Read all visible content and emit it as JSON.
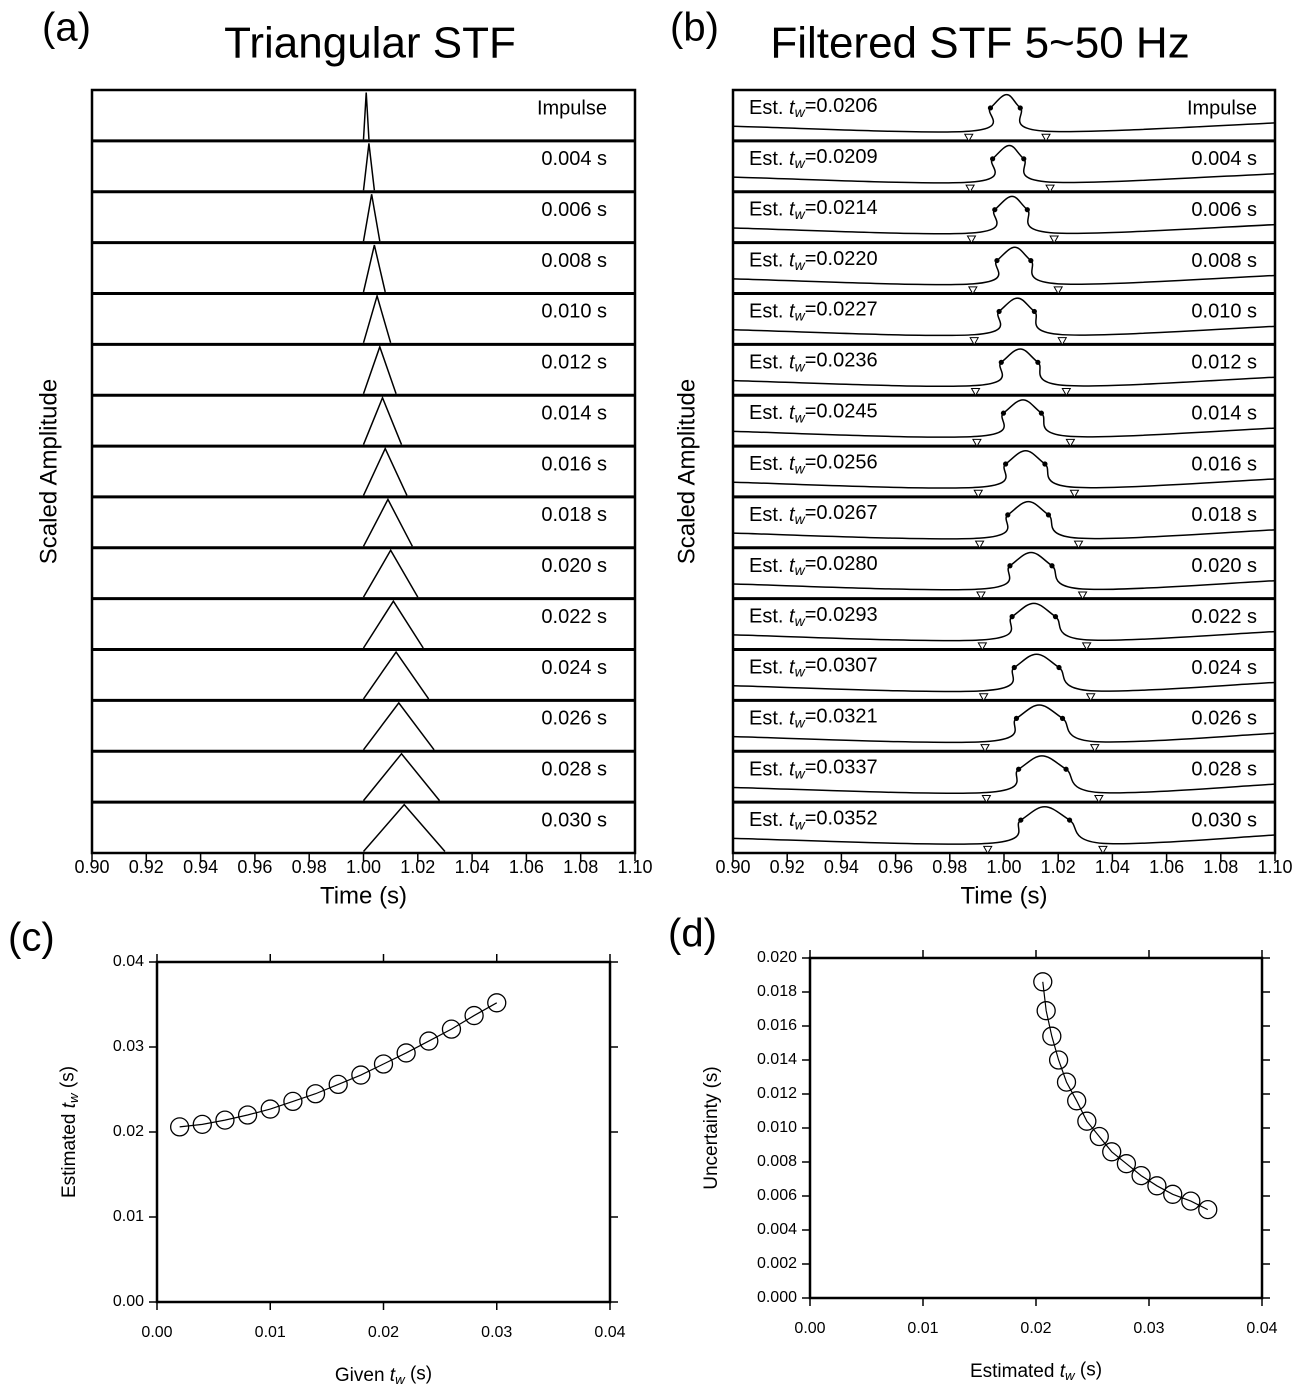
{
  "chart_data": [
    {
      "type": "triangles",
      "panel": "(a)",
      "title": "Triangular STF",
      "xlabel": "Time (s)",
      "ylabel": "Scaled Amplitude",
      "xlim": [
        0.9,
        1.1
      ],
      "xticks": [
        {
          "value": 0.9,
          "label": "0.90"
        },
        0.92,
        0.94,
        0.96,
        0.98,
        {
          "value": 1,
          "label": "1.00"
        },
        1.02,
        1.04,
        1.06,
        1.08,
        {
          "value": 1.1,
          "label": "1.10"
        }
      ],
      "ylim": [
        0,
        1
      ],
      "series": [
        {
          "name": "Impulse",
          "x": [
            1,
            1.001,
            1.002
          ],
          "values": [
            0,
            1,
            0
          ]
        },
        {
          "name": "0.004 s",
          "x": [
            1,
            1.002,
            1.004
          ],
          "values": [
            0,
            1,
            0
          ]
        },
        {
          "name": "0.006 s",
          "x": [
            1,
            1.003,
            1.006
          ],
          "values": [
            0,
            1,
            0
          ]
        },
        {
          "name": "0.008 s",
          "x": [
            1,
            1.004,
            1.008
          ],
          "values": [
            0,
            1,
            0
          ]
        },
        {
          "name": "0.010 s",
          "x": [
            1,
            1.005,
            1.01
          ],
          "values": [
            0,
            1,
            0
          ]
        },
        {
          "name": "0.012 s",
          "x": [
            1,
            1.006,
            1.012
          ],
          "values": [
            0,
            1,
            0
          ]
        },
        {
          "name": "0.014 s",
          "x": [
            1,
            1.007,
            1.014
          ],
          "values": [
            0,
            1,
            0
          ]
        },
        {
          "name": "0.016 s",
          "x": [
            1,
            1.008,
            1.016
          ],
          "values": [
            0,
            1,
            0
          ]
        },
        {
          "name": "0.018 s",
          "x": [
            1,
            1.009,
            1.018
          ],
          "values": [
            0,
            1,
            0
          ]
        },
        {
          "name": "0.020 s",
          "x": [
            1,
            1.01,
            1.02
          ],
          "values": [
            0,
            1,
            0
          ]
        },
        {
          "name": "0.022 s",
          "x": [
            1,
            1.011,
            1.022
          ],
          "values": [
            0,
            1,
            0
          ]
        },
        {
          "name": "0.024 s",
          "x": [
            1,
            1.012,
            1.024
          ],
          "values": [
            0,
            1,
            0
          ]
        },
        {
          "name": "0.026 s",
          "x": [
            1,
            1.013,
            1.026
          ],
          "values": [
            0,
            1,
            0
          ]
        },
        {
          "name": "0.028 s",
          "x": [
            1,
            1.014,
            1.028
          ],
          "values": [
            0,
            1,
            0
          ]
        },
        {
          "name": "0.030 s",
          "x": [
            1,
            1.015,
            1.03
          ],
          "values": [
            0,
            1,
            0
          ]
        }
      ]
    },
    {
      "type": "waveforms",
      "panel": "(b)",
      "title": "Filtered STF 5~50 Hz",
      "xlabel": "Time (s)",
      "ylabel": "Scaled Amplitude",
      "estimate_label": {
        "prefix": "Est. ",
        "symbol": "t",
        "subscript": "w",
        "sign": "="
      },
      "xlim": [
        0.9,
        1.1
      ],
      "xticks": [
        {
          "value": 0.9,
          "label": "0.90"
        },
        0.92,
        0.94,
        0.96,
        0.98,
        {
          "value": 1,
          "label": "1.00"
        },
        1.02,
        1.04,
        1.06,
        1.08,
        {
          "value": 1.1,
          "label": "1.10"
        }
      ],
      "ylim": [
        -0.3,
        1.05
      ],
      "series": [
        {
          "name": "Impulse",
          "estimate_label": "0.0206",
          "x": [
            0.9,
            0.987,
            0.995,
            1.001,
            1.006,
            1.0155,
            1.1
          ],
          "values": [
            0.05,
            -0.1,
            0.6,
            1,
            0.6,
            -0.1,
            0.15
          ]
        },
        {
          "name": "0.004 s",
          "estimate_label": "0.0209",
          "x": [
            0.9,
            0.9875,
            0.9958,
            1.002,
            1.0073,
            1.017,
            1.1
          ],
          "values": [
            0.05,
            -0.1,
            0.6,
            1,
            0.6,
            -0.1,
            0.15
          ]
        },
        {
          "name": "0.006 s",
          "estimate_label": "0.0214",
          "x": [
            0.9,
            0.988,
            0.9966,
            1.003,
            1.0086,
            1.0185,
            1.1
          ],
          "values": [
            0.05,
            -0.1,
            0.6,
            1,
            0.6,
            -0.1,
            0.15
          ]
        },
        {
          "name": "0.008 s",
          "estimate_label": "0.0220",
          "x": [
            0.9,
            0.9885,
            0.9974,
            1.004,
            1.0099,
            1.02,
            1.1
          ],
          "values": [
            0.05,
            -0.1,
            0.6,
            1,
            0.6,
            -0.1,
            0.15
          ]
        },
        {
          "name": "0.010 s",
          "estimate_label": "0.0227",
          "x": [
            0.9,
            0.989,
            0.9982,
            1.005,
            1.0112,
            1.0215,
            1.1
          ],
          "values": [
            0.05,
            -0.1,
            0.6,
            1,
            0.6,
            -0.1,
            0.15
          ]
        },
        {
          "name": "0.012 s",
          "estimate_label": "0.0236",
          "x": [
            0.9,
            0.9895,
            0.999,
            1.006,
            1.0125,
            1.023,
            1.1
          ],
          "values": [
            0.05,
            -0.1,
            0.6,
            1,
            0.6,
            -0.1,
            0.15
          ]
        },
        {
          "name": "0.014 s",
          "estimate_label": "0.0245",
          "x": [
            0.9,
            0.99,
            0.9998,
            1.007,
            1.0138,
            1.0245,
            1.1
          ],
          "values": [
            0.05,
            -0.1,
            0.6,
            1,
            0.6,
            -0.1,
            0.15
          ]
        },
        {
          "name": "0.016 s",
          "estimate_label": "0.0256",
          "x": [
            0.9,
            0.9905,
            1.0006,
            1.008,
            1.0151,
            1.026,
            1.1
          ],
          "values": [
            0.05,
            -0.1,
            0.6,
            1,
            0.6,
            -0.1,
            0.15
          ]
        },
        {
          "name": "0.018 s",
          "estimate_label": "0.0267",
          "x": [
            0.9,
            0.991,
            1.0014,
            1.009,
            1.0164,
            1.0275,
            1.1
          ],
          "values": [
            0.05,
            -0.1,
            0.6,
            1,
            0.6,
            -0.1,
            0.15
          ]
        },
        {
          "name": "0.020 s",
          "estimate_label": "0.0280",
          "x": [
            0.9,
            0.9915,
            1.0022,
            1.01,
            1.0177,
            1.029,
            1.1
          ],
          "values": [
            0.05,
            -0.1,
            0.6,
            1,
            0.6,
            -0.1,
            0.15
          ]
        },
        {
          "name": "0.022 s",
          "estimate_label": "0.0293",
          "x": [
            0.9,
            0.992,
            1.003,
            1.011,
            1.019,
            1.0305,
            1.1
          ],
          "values": [
            0.05,
            -0.1,
            0.6,
            1,
            0.6,
            -0.1,
            0.15
          ]
        },
        {
          "name": "0.024 s",
          "estimate_label": "0.0307",
          "x": [
            0.9,
            0.9925,
            1.0038,
            1.012,
            1.0203,
            1.032,
            1.1
          ],
          "values": [
            0.05,
            -0.1,
            0.6,
            1,
            0.6,
            -0.1,
            0.15
          ]
        },
        {
          "name": "0.026 s",
          "estimate_label": "0.0321",
          "x": [
            0.9,
            0.993,
            1.0046,
            1.013,
            1.0216,
            1.0335,
            1.1
          ],
          "values": [
            0.05,
            -0.1,
            0.6,
            1,
            0.6,
            -0.1,
            0.15
          ]
        },
        {
          "name": "0.028 s",
          "estimate_label": "0.0337",
          "x": [
            0.9,
            0.9935,
            1.0054,
            1.014,
            1.0229,
            1.035,
            1.1
          ],
          "values": [
            0.05,
            -0.1,
            0.6,
            1,
            0.6,
            -0.1,
            0.15
          ]
        },
        {
          "name": "0.030 s",
          "estimate_label": "0.0352",
          "x": [
            0.9,
            0.994,
            1.0062,
            1.015,
            1.0242,
            1.0365,
            1.1
          ],
          "values": [
            0.05,
            -0.1,
            0.6,
            1,
            0.6,
            -0.1,
            0.15
          ]
        }
      ]
    },
    {
      "type": "line",
      "panel": "(c)",
      "xlabel": {
        "prefix": "Given ",
        "symbol": "t",
        "subscript": "w",
        "suffix": " (s)"
      },
      "ylabel": {
        "prefix": "Estimated ",
        "symbol": "t",
        "subscript": "w",
        "suffix": " (s)"
      },
      "xlim": [
        0,
        0.04
      ],
      "xticks": [
        {
          "value": 0,
          "label": "0.00"
        },
        0.01,
        0.02,
        0.03,
        0.04
      ],
      "ylim": [
        0,
        0.04
      ],
      "yticks": [
        {
          "value": 0,
          "label": "0.00"
        },
        0.01,
        0.02,
        0.03,
        0.04
      ],
      "x": [
        0.002,
        0.004,
        0.006,
        0.008,
        0.01,
        0.012,
        0.014,
        0.016,
        0.018,
        0.02,
        0.022,
        0.024,
        0.026,
        0.028,
        0.03
      ],
      "values": [
        0.0206,
        0.0209,
        0.0214,
        0.022,
        0.0227,
        0.0236,
        0.0245,
        0.0256,
        0.0267,
        0.028,
        0.0293,
        0.0307,
        0.0321,
        0.0337,
        0.0352
      ]
    },
    {
      "type": "line",
      "panel": "(d)",
      "xlabel": {
        "prefix": "Estimated ",
        "symbol": "t",
        "subscript": "w",
        "suffix": " (s)"
      },
      "ylabel": "Uncertainty (s)",
      "xlim": [
        0,
        0.04
      ],
      "xticks": [
        {
          "value": 0,
          "label": "0.00"
        },
        0.01,
        0.02,
        0.03,
        0.04
      ],
      "ylim": [
        0,
        0.02
      ],
      "yticks": [
        {
          "value": 0,
          "label": "0.000"
        },
        0.002,
        0.004,
        0.006,
        0.008,
        {
          "value": 0.01,
          "label": "0.010"
        },
        0.012,
        0.014,
        0.016,
        0.018,
        {
          "value": 0.02,
          "label": "0.020"
        }
      ],
      "x": [
        0.0206,
        0.0209,
        0.0214,
        0.022,
        0.0227,
        0.0236,
        0.0245,
        0.0256,
        0.0267,
        0.028,
        0.0293,
        0.0307,
        0.0321,
        0.0337,
        0.0352
      ],
      "values": [
        0.0186,
        0.0169,
        0.0154,
        0.014,
        0.0127,
        0.0116,
        0.0104,
        0.0095,
        0.0086,
        0.0079,
        0.0072,
        0.0066,
        0.0061,
        0.0057,
        0.0052
      ]
    }
  ]
}
